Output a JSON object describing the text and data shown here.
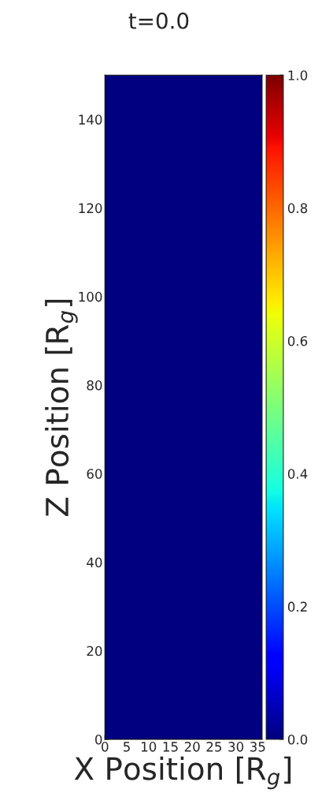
{
  "chart_data": {
    "type": "heatmap",
    "title": "t=0.0",
    "xlabel": "X Position [R$_{g}$]",
    "ylabel": "Z Position [R$_{g}$]",
    "cells": [
      [
        0
      ]
    ],
    "xlim": [
      0,
      36
    ],
    "ylim": [
      0,
      150
    ],
    "xticks": [
      0,
      5,
      10,
      15,
      20,
      25,
      30,
      35
    ],
    "yticks": [
      0,
      20,
      40,
      60,
      80,
      100,
      120,
      140
    ],
    "clim": [
      0,
      1
    ],
    "cticks": [
      {
        "value": 0,
        "label": "0.0"
      },
      0.2,
      0.4,
      0.6,
      0.8,
      {
        "value": 1,
        "label": "1.0"
      }
    ]
  }
}
